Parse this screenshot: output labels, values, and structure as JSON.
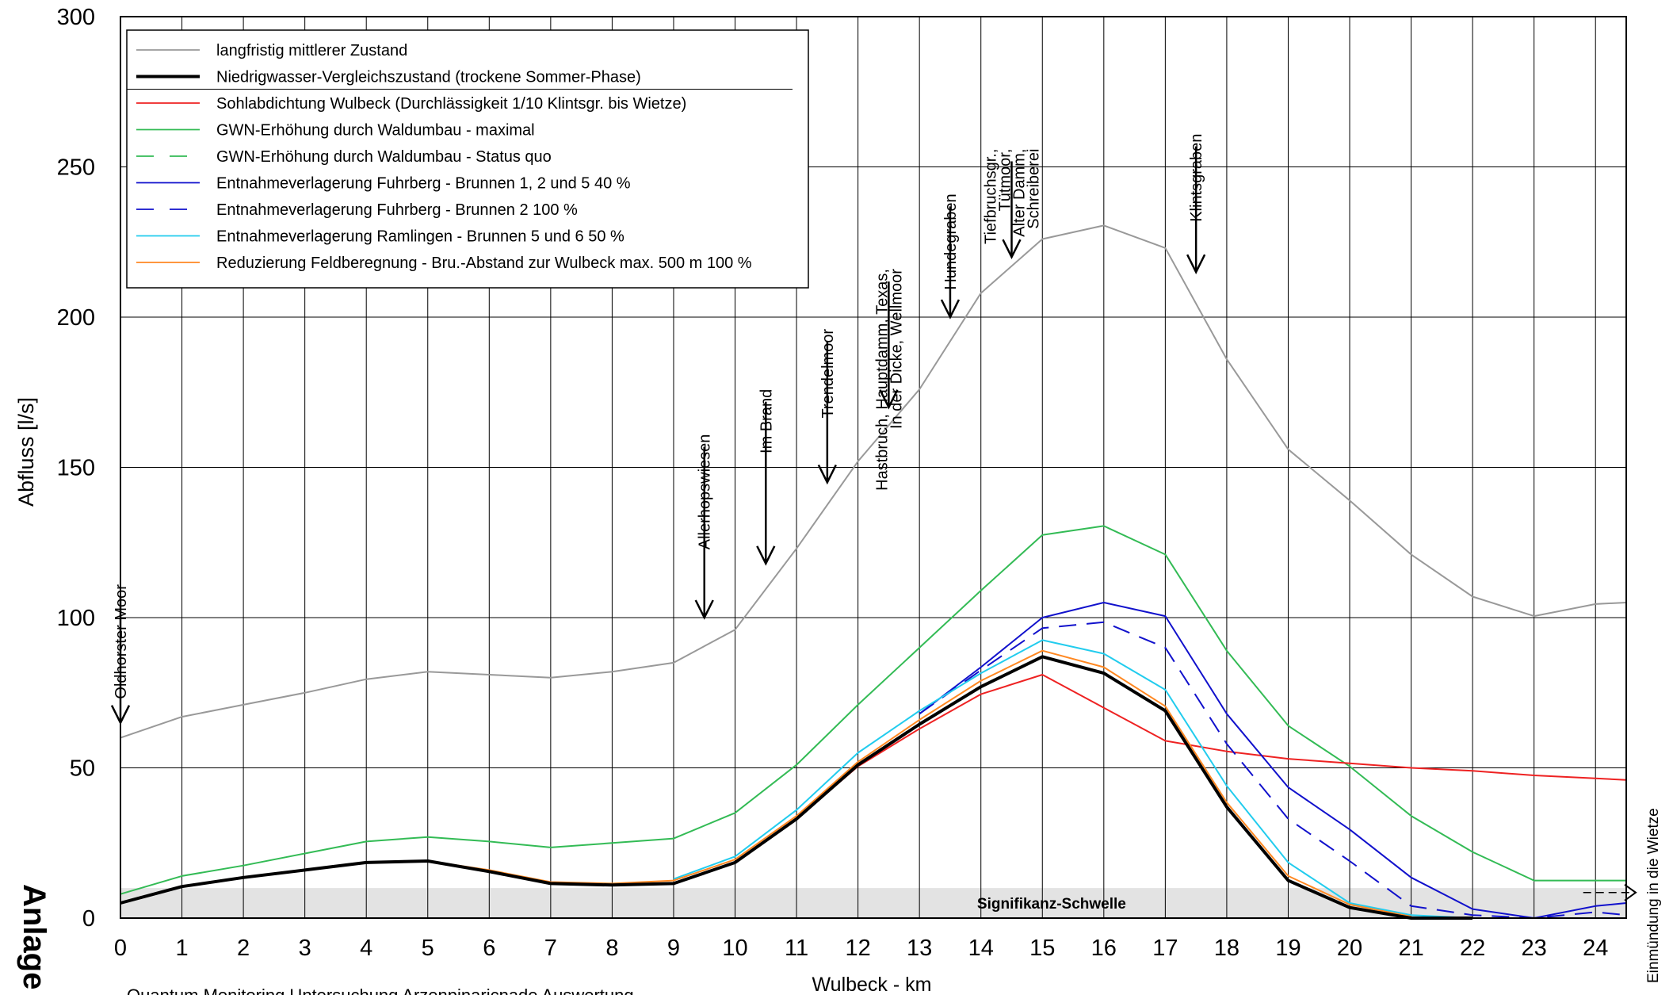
{
  "chart_data": {
    "type": "line",
    "title": "",
    "xlabel": "Wulbeck - km",
    "ylabel": "Abfluss [l/s]",
    "xlim": [
      0,
      24.5
    ],
    "ylim": [
      0,
      300
    ],
    "x_ticks": [
      0,
      1,
      2,
      3,
      4,
      5,
      6,
      7,
      8,
      9,
      10,
      11,
      12,
      13,
      14,
      15,
      16,
      17,
      18,
      19,
      20,
      21,
      22,
      23,
      24
    ],
    "y_ticks": [
      0,
      50,
      100,
      150,
      200,
      250,
      300
    ],
    "grid": true,
    "legend_position": "top-left",
    "threshold": {
      "label": "Signifikanz-Schwelle",
      "value": 10,
      "color": "#e3e3e3"
    },
    "series": [
      {
        "name": "langfristig mittlerer Zustand",
        "color": "#999999",
        "dash": "solid",
        "width": 2,
        "x": [
          0,
          1,
          2,
          3,
          4,
          5,
          6,
          7,
          8,
          9,
          10,
          11,
          12,
          13,
          14,
          15,
          16,
          17,
          18,
          19,
          20,
          21,
          22,
          23,
          24,
          24.5
        ],
        "y": [
          60,
          67,
          71,
          75,
          79.5,
          82,
          81,
          80,
          82,
          85,
          96,
          123,
          152,
          176,
          208,
          226,
          230.5,
          223,
          186,
          156,
          139,
          121,
          107,
          100.5,
          104.5,
          105
        ]
      },
      {
        "name": "Niedrigwasser-Vergleichszustand (trockene Sommer-Phase)",
        "color": "#000000",
        "dash": "solid",
        "width": 4,
        "x": [
          0,
          1,
          2,
          3,
          4,
          5,
          6,
          7,
          8,
          9,
          10,
          11,
          12,
          13,
          14,
          15,
          16,
          17,
          18,
          19,
          20,
          21,
          22
        ],
        "y": [
          5,
          10.5,
          13.5,
          16,
          18.5,
          19,
          15.5,
          11.5,
          11,
          11.5,
          18.5,
          33,
          51,
          64.5,
          77,
          87,
          81.5,
          69,
          37,
          12.5,
          3.5,
          0,
          0
        ]
      },
      {
        "name": "Sohlabdichtung Wulbeck (Durchlässigkeit 1/10 Klintsgr. bis Wietze)",
        "color": "#ee2222",
        "dash": "solid",
        "width": 2,
        "x": [
          11,
          12,
          13,
          14,
          15,
          16,
          17,
          18,
          19,
          20,
          21,
          22,
          23,
          24,
          24.5
        ],
        "y": [
          33,
          50.5,
          63,
          74.5,
          81,
          70,
          59,
          55.5,
          53,
          51.5,
          50,
          49,
          47.5,
          46.5,
          46
        ]
      },
      {
        "name": "GWN-Erhöhung durch Waldumbau - maximal",
        "color": "#33bb55",
        "dash": "solid",
        "width": 2,
        "x": [
          0,
          1,
          2,
          3,
          4,
          5,
          6,
          7,
          8,
          9,
          10,
          11,
          12,
          13,
          14,
          15,
          16,
          17,
          18,
          19,
          20,
          21,
          22,
          23,
          24,
          24.5
        ],
        "y": [
          8,
          14,
          17.5,
          21.5,
          25.5,
          27,
          25.5,
          23.5,
          25,
          26.5,
          35,
          51,
          71,
          90,
          109,
          127.5,
          130.5,
          121,
          89,
          64,
          50.5,
          34,
          22,
          12.5,
          12.5,
          12.5
        ]
      },
      {
        "name": "GWN-Erhöhung durch Waldumbau - Status quo",
        "color": "#33bb55",
        "dash": "dashed",
        "width": 2,
        "x": [],
        "y": []
      },
      {
        "name": "Entnahmeverlagerung Fuhrberg - Brunnen 1, 2 und 5   40 %",
        "color": "#1111cc",
        "dash": "solid",
        "width": 2,
        "x": [
          13,
          14,
          15,
          16,
          17,
          18,
          19,
          20,
          21,
          22,
          23,
          24,
          24.5
        ],
        "y": [
          68,
          83.5,
          100,
          105,
          100.5,
          68,
          43.5,
          29.5,
          13.5,
          3,
          0,
          4,
          5
        ]
      },
      {
        "name": "Entnahmeverlagerung Fuhrberg - Brunnen 2 100 %",
        "color": "#1111cc",
        "dash": "dashed",
        "width": 2,
        "x": [
          13,
          14,
          15,
          16,
          17,
          18,
          19,
          20,
          21,
          22,
          23,
          24,
          24.5
        ],
        "y": [
          68,
          82.5,
          96.5,
          98.5,
          90,
          58,
          33,
          19,
          4,
          1,
          0,
          2,
          1
        ]
      },
      {
        "name": "Entnahmeverlagerung Ramlingen - Brunnen 5 und 6 50 %",
        "color": "#22ccee",
        "dash": "solid",
        "width": 2,
        "x": [
          9,
          10,
          11,
          12,
          13,
          14,
          15,
          16,
          17,
          18,
          19,
          20,
          21,
          22
        ],
        "y": [
          13,
          20.5,
          36,
          55,
          69,
          81.5,
          92.5,
          88,
          76,
          44,
          18.5,
          5,
          1,
          0
        ]
      },
      {
        "name": "Reduzierung Feldberegnung - Bru.-Abstand zur Wulbeck max. 500 m 100 %",
        "color": "#ff8822",
        "dash": "solid",
        "width": 2,
        "x": [
          0,
          1,
          2,
          3,
          4,
          5,
          6,
          7,
          8,
          9,
          10,
          11,
          12,
          13,
          14,
          15,
          16,
          17,
          18,
          19,
          20,
          21
        ],
        "y": [
          5,
          10.5,
          13.5,
          16,
          18.5,
          19,
          16,
          12,
          11.5,
          12.5,
          19.5,
          34,
          52,
          66,
          79,
          89,
          83.5,
          70.5,
          38.5,
          14,
          4.5,
          0.5
        ]
      }
    ],
    "annotations": [
      {
        "lines": [
          "Oldhorster Moor"
        ],
        "x": 0,
        "y_tip": 65,
        "y_top": 110
      },
      {
        "lines": [
          "Allerhopswiesen"
        ],
        "x": 9.5,
        "y_tip": 100,
        "y_top": 160
      },
      {
        "lines": [
          "Im Brand"
        ],
        "x": 10.5,
        "y_tip": 118,
        "y_top": 175
      },
      {
        "lines": [
          "Trendelmoor"
        ],
        "x": 11.5,
        "y_tip": 145,
        "y_top": 195
      },
      {
        "lines": [
          "Hastbruch, Hauptdamm, Texas,",
          "In der Dicke, Wellmoor"
        ],
        "x": 12.5,
        "y_tip": 170,
        "y_top": 215
      },
      {
        "lines": [
          "Hundegraben"
        ],
        "x": 13.5,
        "y_tip": 200,
        "y_top": 240
      },
      {
        "lines": [
          "Tiefbruchsgr.,",
          "Tütmoor,",
          "Alter Damm,",
          "Schreiberei"
        ],
        "x": 14.5,
        "y_tip": 220,
        "y_top": 255
      },
      {
        "lines": [
          "Klintsgraben"
        ],
        "x": 17.5,
        "y_tip": 215,
        "y_top": 260
      },
      {
        "lines": [
          "Einmündung in die Wietze"
        ],
        "x": 24.5,
        "y_tip": 0,
        "y_top": 0
      }
    ],
    "side_label": "Anlage",
    "footnote": "Quantum Monitoring Untersuchung Arzenpinaricnade Auswertung"
  }
}
